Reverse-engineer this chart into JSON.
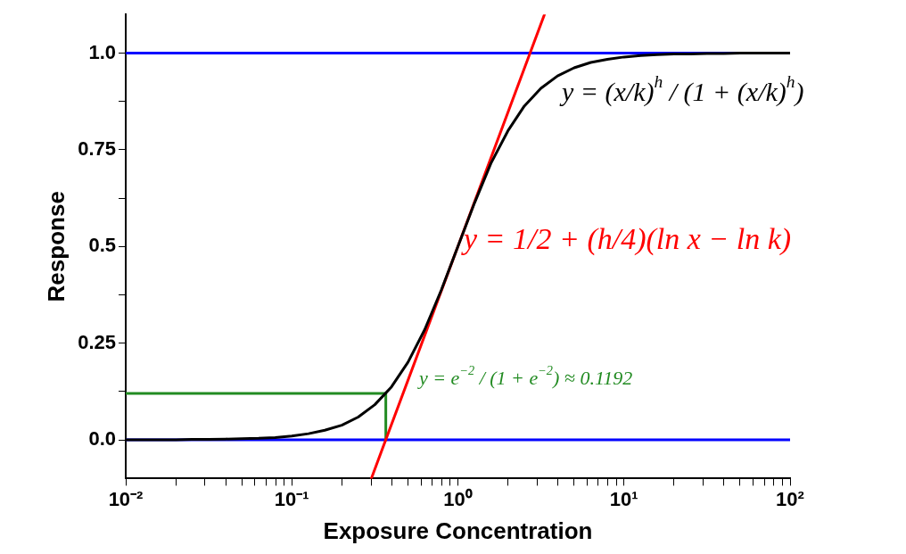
{
  "chart_data": {
    "type": "line",
    "xlabel": "Exposure Concentration",
    "ylabel": "Response",
    "log": "x",
    "grid": false,
    "legend": false,
    "marker": "none",
    "line_style": "solid",
    "xlim": [
      0.01,
      100
    ],
    "ylim": [
      -0.1,
      1.1
    ],
    "xticks": [
      {
        "value": 0.01,
        "label": "10⁻²"
      },
      {
        "value": 0.02,
        "label": null
      },
      {
        "value": 0.03,
        "label": null
      },
      {
        "value": 0.04,
        "label": null
      },
      {
        "value": 0.05,
        "label": null
      },
      {
        "value": 0.06,
        "label": null
      },
      {
        "value": 0.07,
        "label": null
      },
      {
        "value": 0.08,
        "label": null
      },
      {
        "value": 0.09,
        "label": null
      },
      {
        "value": 0.1,
        "label": "10⁻¹"
      },
      {
        "value": 0.2,
        "label": null
      },
      {
        "value": 0.3,
        "label": null
      },
      {
        "value": 0.4,
        "label": null
      },
      {
        "value": 0.5,
        "label": null
      },
      {
        "value": 0.6,
        "label": null
      },
      {
        "value": 0.7,
        "label": null
      },
      {
        "value": 0.8,
        "label": null
      },
      {
        "value": 0.9,
        "label": null
      },
      {
        "value": 1,
        "label": "10⁰"
      },
      {
        "value": 2,
        "label": null
      },
      {
        "value": 3,
        "label": null
      },
      {
        "value": 4,
        "label": null
      },
      {
        "value": 5,
        "label": null
      },
      {
        "value": 6,
        "label": null
      },
      {
        "value": 7,
        "label": null
      },
      {
        "value": 8,
        "label": null
      },
      {
        "value": 9,
        "label": null
      },
      {
        "value": 10,
        "label": "10¹"
      },
      {
        "value": 20,
        "label": null
      },
      {
        "value": 30,
        "label": null
      },
      {
        "value": 40,
        "label": null
      },
      {
        "value": 50,
        "label": null
      },
      {
        "value": 60,
        "label": null
      },
      {
        "value": 70,
        "label": null
      },
      {
        "value": 80,
        "label": null
      },
      {
        "value": 90,
        "label": null
      },
      {
        "value": 100,
        "label": "10²"
      }
    ],
    "yticks": [
      {
        "value": 0,
        "label": "0.0"
      },
      {
        "value": 0.125,
        "label": null
      },
      0.25,
      {
        "value": 0.375,
        "label": null
      },
      0.5,
      {
        "value": 0.625,
        "label": null
      },
      0.75,
      {
        "value": 0.875,
        "label": null
      },
      {
        "value": 1,
        "label": "1.0"
      }
    ],
    "series": [
      {
        "color": "#000000",
        "x": [
          0.01,
          0.0126,
          0.0158,
          0.02,
          0.0251,
          0.0316,
          0.0398,
          0.0501,
          0.0631,
          0.0794,
          0.1,
          0.126,
          0.158,
          0.2,
          0.251,
          0.316,
          0.398,
          0.501,
          0.631,
          0.794,
          1,
          1.26,
          1.58,
          2,
          2.51,
          3.16,
          3.98,
          5.01,
          6.31,
          7.94,
          10,
          12.6,
          15.8,
          20,
          25.1,
          31.6,
          39.8,
          50.1,
          63.1,
          79.4,
          100
        ],
        "values": [
          0,
          0,
          0,
          0,
          0.001,
          0.001,
          0.002,
          0.003,
          0.004,
          0.006,
          0.01,
          0.016,
          0.025,
          0.038,
          0.059,
          0.091,
          0.137,
          0.201,
          0.285,
          0.387,
          0.5,
          0.613,
          0.715,
          0.799,
          0.863,
          0.909,
          0.941,
          0.962,
          0.976,
          0.984,
          0.99,
          0.994,
          0.996,
          0.998,
          0.998,
          0.999,
          0.999,
          1,
          1,
          1,
          1
        ]
      },
      {
        "color": "#ff0000",
        "x": [
          0.301,
          3.32
        ],
        "values": [
          -0.1,
          1.1
        ]
      },
      {
        "color": "#228b22",
        "x": [
          0.01,
          0.368,
          0.368
        ],
        "values": [
          0.12,
          0.12,
          0
        ]
      }
    ],
    "ref_lines": [
      {
        "axis": "y",
        "value": 0,
        "color": "#0000ff",
        "line_style": "solid"
      },
      {
        "axis": "y",
        "value": 1,
        "color": "#0000ff",
        "line_style": "solid"
      }
    ],
    "annotations": [
      "y = (x/k)$^{h}$ / (1 + (x/k)$^{h}$)",
      "y = 1/2 + (h/4)(ln x − ln k)",
      "y = e$^{−2}$ / (1 + e$^{−2}$) ≈ 0.1192"
    ]
  }
}
